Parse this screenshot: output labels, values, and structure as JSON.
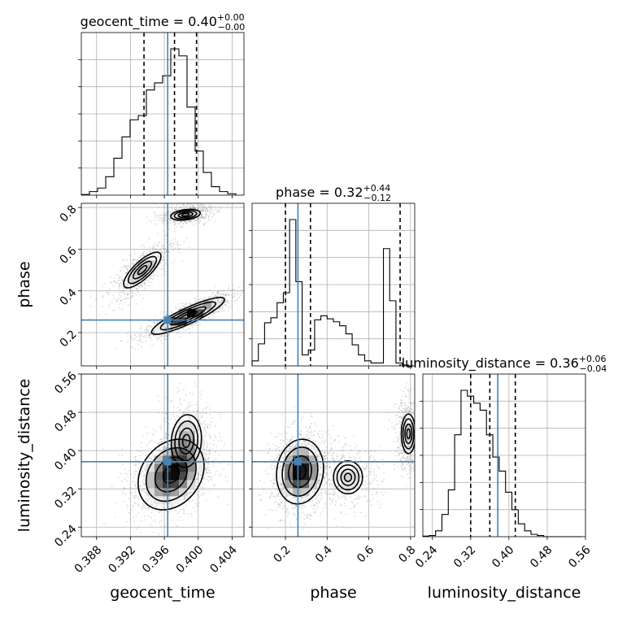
{
  "chart_data": {
    "type": "corner",
    "truth_color": "#4682b4",
    "parameters": [
      {
        "name": "geocent_time",
        "title": {
          "prefix": "geocent_time = 0.40",
          "upper": "+0.00",
          "lower": "−0.00"
        },
        "range": [
          0.3862,
          0.4054
        ],
        "ticks": [
          0.388,
          0.392,
          0.396,
          0.4,
          0.404
        ],
        "tick_labels": [
          "0.388",
          "0.392",
          "0.396",
          "0.400",
          "0.404"
        ],
        "truth": 0.3964,
        "quantiles": [
          0.3936,
          0.3972,
          0.3998
        ],
        "hist_edges_start": 0.3862,
        "hist_bin_width": 0.00096,
        "hist_counts": [
          0.5,
          2.5,
          5,
          13,
          26,
          41,
          53,
          56,
          74,
          79,
          84,
          103,
          98,
          62,
          31,
          16,
          6,
          2.5,
          1
        ]
      },
      {
        "name": "phase",
        "title": {
          "prefix": "phase = 0.32",
          "upper": "+0.44",
          "lower": "−0.12"
        },
        "range": [
          0.04,
          0.82
        ],
        "ticks": [
          0.2,
          0.4,
          0.6,
          0.8
        ],
        "tick_labels": [
          "0.2",
          "0.4",
          "0.6",
          "0.8"
        ],
        "truth": 0.26,
        "quantiles": [
          0.2,
          0.32,
          0.75
        ],
        "hist_edges_start": 0.04,
        "hist_bin_width": 0.03,
        "hist_counts": [
          5,
          22,
          43,
          48,
          63,
          73,
          146,
          84,
          11,
          16,
          46,
          50,
          47,
          44,
          40,
          32,
          21,
          11,
          5,
          3,
          3,
          117,
          65,
          3,
          1,
          0
        ]
      },
      {
        "name": "luminosity_distance",
        "title": {
          "prefix": "luminosity_distance = 0.36",
          "upper": "+0.06",
          "lower": "−0.04"
        },
        "range": [
          0.22,
          0.56
        ],
        "ticks": [
          0.24,
          0.32,
          0.4,
          0.48,
          0.56
        ],
        "tick_labels": [
          "0.24",
          "0.32",
          "0.40",
          "0.48",
          "0.56"
        ],
        "truth": 0.3767,
        "quantiles": [
          0.32,
          0.36,
          0.4133
        ],
        "hist_edges_start": 0.22,
        "hist_bin_width": 0.0133,
        "hist_counts": [
          0.5,
          1,
          5,
          19,
          40,
          87,
          125,
          120,
          114,
          108,
          87,
          68,
          56,
          38,
          23,
          11,
          5,
          2,
          1,
          0,
          0,
          0,
          0,
          0,
          0
        ]
      }
    ],
    "pair_blobs": [
      {
        "x": "geocent_time",
        "y": "phase",
        "modes": [
          {
            "cx": 0.3988,
            "cy": 0.28,
            "sx": 0.0021,
            "sy": 0.043,
            "rho": 0.88,
            "weight": 1.0
          },
          {
            "cx": 0.3934,
            "cy": 0.5,
            "sx": 0.0016,
            "sy": 0.062,
            "rho": 0.78,
            "weight": 0.45
          },
          {
            "cx": 0.3985,
            "cy": 0.765,
            "sx": 0.0012,
            "sy": 0.018,
            "rho": 0.3,
            "weight": 0.5
          }
        ]
      },
      {
        "x": "geocent_time",
        "y": "luminosity_distance",
        "modes": [
          {
            "cx": 0.3968,
            "cy": 0.35,
            "sx": 0.0019,
            "sy": 0.036,
            "rho": 0.25,
            "weight": 1.0
          },
          {
            "cx": 0.3986,
            "cy": 0.42,
            "sx": 0.0013,
            "sy": 0.04,
            "rho": 0.1,
            "weight": 0.45
          }
        ]
      },
      {
        "x": "phase",
        "y": "luminosity_distance",
        "modes": [
          {
            "cx": 0.27,
            "cy": 0.356,
            "sx": 0.055,
            "sy": 0.033,
            "rho": 0.1,
            "weight": 1.0
          },
          {
            "cx": 0.5,
            "cy": 0.344,
            "sx": 0.065,
            "sy": 0.025,
            "rho": 0.0,
            "weight": 0.35
          },
          {
            "cx": 0.79,
            "cy": 0.435,
            "sx": 0.025,
            "sy": 0.03,
            "rho": 0.0,
            "weight": 0.45
          }
        ]
      }
    ]
  }
}
